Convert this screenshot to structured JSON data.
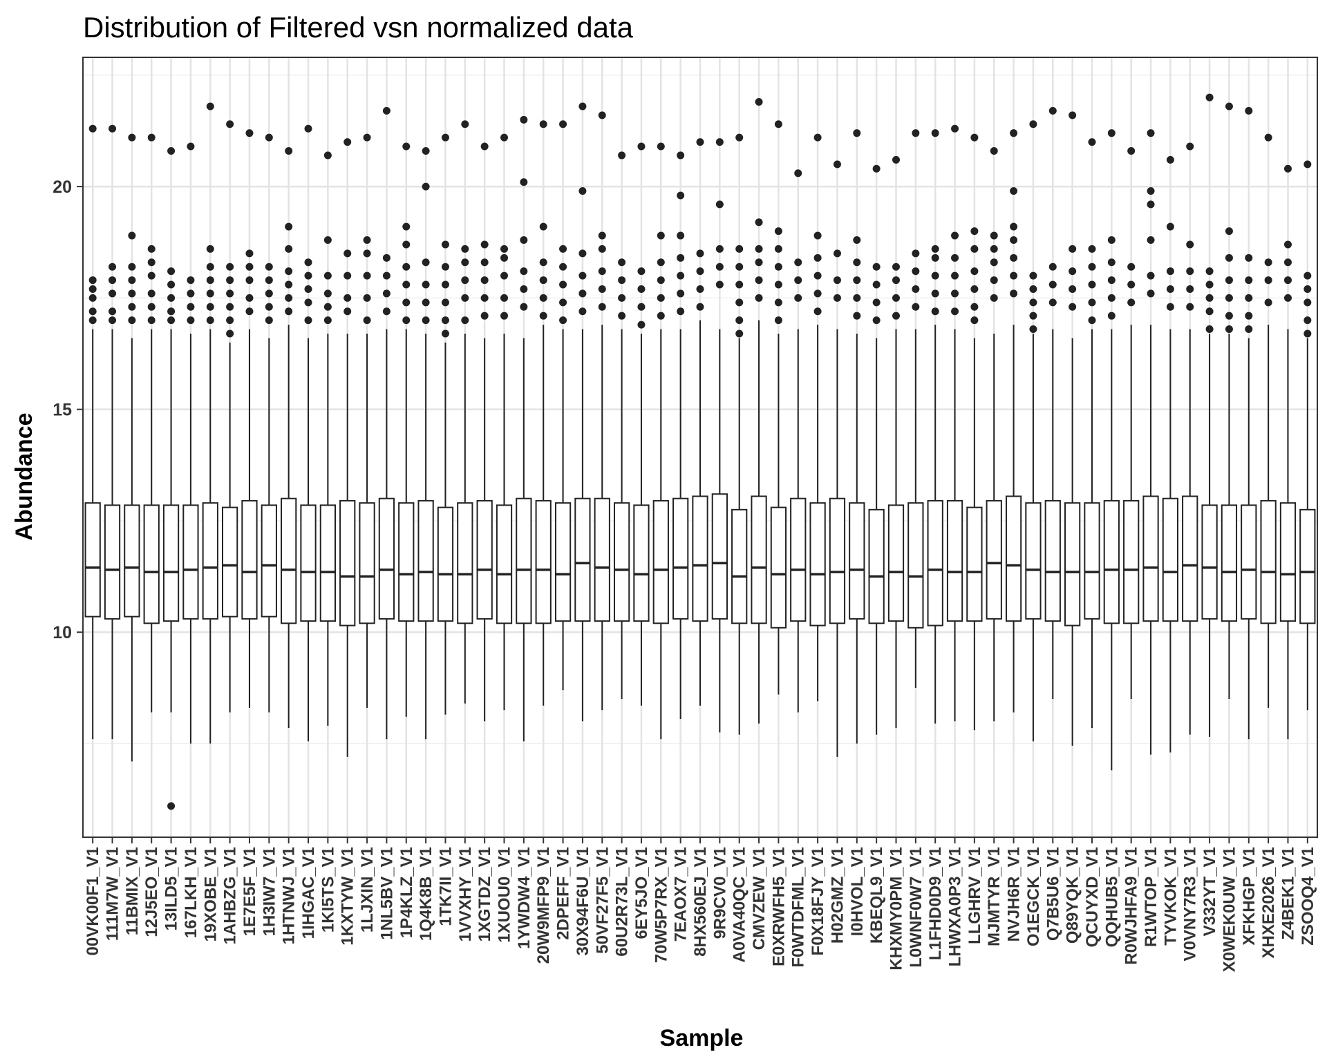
{
  "chart_data": {
    "type": "boxplot",
    "title": "Distribution of Filtered vsn normalized data",
    "xlabel": "Sample",
    "ylabel": "Abundance",
    "ylim": [
      5.4,
      22.9
    ],
    "yticks": [
      10,
      15,
      20
    ],
    "grid": true,
    "categories": [
      "00VK00F1_V1",
      "111M7W_V1",
      "11BMIX_V1",
      "12J5EO_V1",
      "13ILD5_V1",
      "167LKH_V1",
      "19XOBE_V1",
      "1AHBZG_V1",
      "1E7E5F_V1",
      "1H3IW7_V1",
      "1HTNWJ_V1",
      "1IHGAC_V1",
      "1KI5TS_V1",
      "1KXTYW_V1",
      "1LJXIN_V1",
      "1NL5BV_V1",
      "1P4KLZ_V1",
      "1Q4K8B_V1",
      "1TK7II_V1",
      "1VVXHY_V1",
      "1XGTDZ_V1",
      "1XUOU0_V1",
      "1YWDW4_V1",
      "20W9MFP9_V1",
      "2DPEFF_V1",
      "30X94F6U_V1",
      "50VF27F5_V1",
      "60U2R73L_V1",
      "6EY5JO_V1",
      "70W5P7RX_V1",
      "7EAOX7_V1",
      "8HX560EJ_V1",
      "9R9CV0_V1",
      "A0VA40QC_V1",
      "CMVZEW_V1",
      "E0XRWFH5_V1",
      "F0WTDFML_V1",
      "F0X18FJY_V1",
      "H02GMZ_V1",
      "I0HVOL_V1",
      "KBEQL9_V1",
      "KHXMY0PM_V1",
      "L0WNF0W7_V1",
      "L1FHD0D9_V1",
      "LHWXA0P3_V1",
      "LLGHRV_V1",
      "MJMTYR_V1",
      "NVJH6R_V1",
      "O1EGCK_V1",
      "Q7B5U6_V1",
      "Q89YQK_V1",
      "QCUYXD_V1",
      "QQHUB5_V1",
      "R0WJHFA9_V1",
      "R1WTOP_V1",
      "TYVKOK_V1",
      "V0VNY7R3_V1",
      "V332YT_V1",
      "X0WEK0UW_V1",
      "XFKHGP_V1",
      "XHXE2026_V1",
      "Z4BEK1_V1",
      "ZSOOQ4_V1"
    ],
    "boxes": {
      "q1": [
        10.35,
        10.3,
        10.35,
        10.2,
        10.25,
        10.3,
        10.3,
        10.35,
        10.3,
        10.35,
        10.2,
        10.25,
        10.25,
        10.15,
        10.2,
        10.3,
        10.25,
        10.25,
        10.25,
        10.2,
        10.3,
        10.2,
        10.2,
        10.2,
        10.25,
        10.25,
        10.25,
        10.25,
        10.25,
        10.2,
        10.3,
        10.25,
        10.3,
        10.2,
        10.2,
        10.1,
        10.25,
        10.15,
        10.2,
        10.3,
        10.2,
        10.25,
        10.1,
        10.15,
        10.25,
        10.25,
        10.3,
        10.25,
        10.3,
        10.25,
        10.15,
        10.3,
        10.2,
        10.2,
        10.25,
        10.25,
        10.25,
        10.3,
        10.25,
        10.3,
        10.2,
        10.25,
        10.2
      ],
      "median": [
        11.45,
        11.4,
        11.45,
        11.35,
        11.35,
        11.4,
        11.45,
        11.5,
        11.35,
        11.5,
        11.4,
        11.35,
        11.35,
        11.25,
        11.25,
        11.4,
        11.3,
        11.35,
        11.3,
        11.3,
        11.4,
        11.3,
        11.4,
        11.4,
        11.3,
        11.55,
        11.45,
        11.4,
        11.3,
        11.4,
        11.45,
        11.5,
        11.55,
        11.25,
        11.45,
        11.3,
        11.4,
        11.3,
        11.35,
        11.4,
        11.25,
        11.35,
        11.25,
        11.4,
        11.35,
        11.35,
        11.55,
        11.5,
        11.4,
        11.35,
        11.35,
        11.35,
        11.4,
        11.4,
        11.45,
        11.35,
        11.5,
        11.45,
        11.35,
        11.4,
        11.35,
        11.3,
        11.35
      ],
      "q3": [
        12.9,
        12.85,
        12.85,
        12.85,
        12.85,
        12.85,
        12.9,
        12.8,
        12.95,
        12.85,
        13.0,
        12.85,
        12.85,
        12.95,
        12.9,
        13.0,
        12.9,
        12.95,
        12.8,
        12.9,
        12.95,
        12.85,
        13.0,
        12.95,
        12.9,
        13.0,
        13.0,
        12.9,
        12.85,
        12.95,
        13.0,
        13.05,
        13.1,
        12.75,
        13.05,
        12.8,
        13.0,
        12.9,
        13.0,
        12.9,
        12.75,
        12.85,
        12.9,
        12.95,
        12.95,
        12.8,
        12.95,
        13.05,
        12.9,
        12.95,
        12.9,
        12.9,
        12.95,
        12.95,
        13.05,
        13.0,
        13.05,
        12.85,
        12.85,
        12.85,
        12.95,
        12.9,
        12.75
      ],
      "whisker_low": [
        7.6,
        7.6,
        7.1,
        8.2,
        8.2,
        7.5,
        7.5,
        8.2,
        8.3,
        8.2,
        7.85,
        7.55,
        7.9,
        7.2,
        8.3,
        7.6,
        8.1,
        7.6,
        8.15,
        8.4,
        8.0,
        8.25,
        7.55,
        8.35,
        8.7,
        8.0,
        8.25,
        8.5,
        8.35,
        7.6,
        8.05,
        8.35,
        7.75,
        7.7,
        7.95,
        8.6,
        8.2,
        8.45,
        7.2,
        7.5,
        7.7,
        7.85,
        8.75,
        7.95,
        8.0,
        7.8,
        8.0,
        8.2,
        7.55,
        8.5,
        7.45,
        7.85,
        6.9,
        8.5,
        7.25,
        7.3,
        7.7,
        7.65,
        8.5,
        7.6,
        8.3,
        7.6,
        8.25
      ],
      "whisker_high": [
        16.8,
        16.8,
        16.6,
        16.8,
        16.8,
        16.7,
        16.8,
        16.5,
        16.8,
        16.6,
        16.9,
        16.6,
        16.7,
        16.7,
        16.7,
        16.8,
        16.8,
        16.7,
        16.5,
        16.7,
        16.6,
        16.7,
        16.6,
        16.9,
        16.8,
        16.8,
        16.9,
        16.8,
        16.7,
        16.8,
        16.8,
        17.0,
        16.8,
        16.6,
        17.0,
        16.7,
        16.8,
        16.9,
        16.8,
        16.7,
        16.6,
        16.8,
        16.8,
        16.9,
        16.8,
        16.6,
        16.7,
        16.9,
        16.7,
        16.8,
        16.6,
        16.8,
        16.8,
        16.9,
        16.9,
        16.8,
        16.8,
        16.7,
        16.7,
        16.6,
        16.9,
        16.8,
        16.6
      ],
      "outliers": [
        [
          17.0,
          17.2,
          17.5,
          17.7,
          17.9,
          21.3
        ],
        [
          17.0,
          17.2,
          17.6,
          17.9,
          18.2,
          21.3
        ],
        [
          17.0,
          17.3,
          17.6,
          17.9,
          18.2,
          18.9,
          21.1
        ],
        [
          17.0,
          17.3,
          17.6,
          18.0,
          18.3,
          18.6,
          21.1
        ],
        [
          17.0,
          17.2,
          17.5,
          17.8,
          18.1,
          20.8
        ],
        [
          17.0,
          17.3,
          17.6,
          17.9,
          20.9
        ],
        [
          17.0,
          17.3,
          17.6,
          17.9,
          18.2,
          18.6,
          21.8
        ],
        [
          16.7,
          17.0,
          17.3,
          17.6,
          17.9,
          18.2,
          21.4
        ],
        [
          17.2,
          17.5,
          17.9,
          18.2,
          18.5,
          21.2
        ],
        [
          17.0,
          17.3,
          17.6,
          17.9,
          18.2,
          21.1
        ],
        [
          17.2,
          17.5,
          17.8,
          18.1,
          18.6,
          19.1,
          20.8
        ],
        [
          17.0,
          17.4,
          17.7,
          18.0,
          18.3,
          21.3
        ],
        [
          17.0,
          17.3,
          17.6,
          18.0,
          18.8,
          20.7
        ],
        [
          17.2,
          17.5,
          18.0,
          18.5,
          21.0
        ],
        [
          17.0,
          17.5,
          18.0,
          18.5,
          18.8,
          21.1
        ],
        [
          17.2,
          17.6,
          18.0,
          18.4,
          21.7
        ],
        [
          17.0,
          17.4,
          17.8,
          18.2,
          18.7,
          19.1,
          20.9
        ],
        [
          17.0,
          17.4,
          17.8,
          18.3,
          20.0,
          20.8
        ],
        [
          16.7,
          17.0,
          17.4,
          17.8,
          18.2,
          18.7,
          21.1
        ],
        [
          17.0,
          17.5,
          17.9,
          18.3,
          18.6,
          21.4
        ],
        [
          17.1,
          17.5,
          17.9,
          18.3,
          18.7,
          20.9
        ],
        [
          17.1,
          17.5,
          18.0,
          18.4,
          18.6,
          21.1
        ],
        [
          17.3,
          17.7,
          18.1,
          18.8,
          20.1,
          21.5
        ],
        [
          17.1,
          17.5,
          17.9,
          18.3,
          19.1,
          21.4
        ],
        [
          17.0,
          17.4,
          17.8,
          18.2,
          18.6,
          21.4
        ],
        [
          17.2,
          17.6,
          18.0,
          18.5,
          19.9,
          21.8
        ],
        [
          17.3,
          17.7,
          18.1,
          18.6,
          18.9,
          21.6
        ],
        [
          17.1,
          17.5,
          17.9,
          18.3,
          20.7
        ],
        [
          16.9,
          17.3,
          17.7,
          18.1,
          20.9
        ],
        [
          17.1,
          17.5,
          17.9,
          18.3,
          18.9,
          20.9
        ],
        [
          17.2,
          17.6,
          18.0,
          18.4,
          18.9,
          19.8,
          20.7
        ],
        [
          17.3,
          17.7,
          18.1,
          18.5,
          21.0
        ],
        [
          17.8,
          18.2,
          18.6,
          19.6,
          21.0
        ],
        [
          16.7,
          17.0,
          17.4,
          17.8,
          18.2,
          18.6,
          21.1
        ],
        [
          17.5,
          17.9,
          18.3,
          18.6,
          19.2,
          21.9
        ],
        [
          17.0,
          17.4,
          17.8,
          18.2,
          18.6,
          19.0,
          21.4
        ],
        [
          17.5,
          17.9,
          18.3,
          20.3
        ],
        [
          17.2,
          17.6,
          18.0,
          18.4,
          18.9,
          21.1
        ],
        [
          17.5,
          17.9,
          18.5,
          20.5
        ],
        [
          17.1,
          17.5,
          17.9,
          18.3,
          18.8,
          21.2
        ],
        [
          17.0,
          17.4,
          17.8,
          18.2,
          20.4
        ],
        [
          17.1,
          17.5,
          17.9,
          18.2,
          20.6
        ],
        [
          17.3,
          17.7,
          18.1,
          18.5,
          21.2
        ],
        [
          17.2,
          17.6,
          18.0,
          18.4,
          18.6,
          21.2
        ],
        [
          17.2,
          17.6,
          18.0,
          18.4,
          18.9,
          21.3
        ],
        [
          17.0,
          17.3,
          17.7,
          18.1,
          18.6,
          19.0,
          21.1
        ],
        [
          17.5,
          17.9,
          18.3,
          18.6,
          18.9,
          20.8
        ],
        [
          17.6,
          18.0,
          18.4,
          18.8,
          19.1,
          19.9,
          21.2
        ],
        [
          16.8,
          17.1,
          17.4,
          17.7,
          18.0,
          21.4
        ],
        [
          17.4,
          17.8,
          18.2,
          21.7
        ],
        [
          17.3,
          17.7,
          18.1,
          18.6,
          21.6
        ],
        [
          17.0,
          17.4,
          17.8,
          18.2,
          18.6,
          21.0
        ],
        [
          17.1,
          17.5,
          17.9,
          18.3,
          18.8,
          21.2
        ],
        [
          17.4,
          17.8,
          18.2,
          20.8
        ],
        [
          17.6,
          18.0,
          18.8,
          19.6,
          19.9,
          21.2
        ],
        [
          17.3,
          17.7,
          18.1,
          19.1,
          20.6
        ],
        [
          17.3,
          17.7,
          18.1,
          18.7,
          20.9
        ],
        [
          16.8,
          17.2,
          17.5,
          17.8,
          18.1,
          22.0
        ],
        [
          16.8,
          17.1,
          17.5,
          17.9,
          18.4,
          19.0,
          21.8
        ],
        [
          16.8,
          17.1,
          17.5,
          17.9,
          18.4,
          21.7
        ],
        [
          17.4,
          17.9,
          18.3,
          21.1
        ],
        [
          17.5,
          17.9,
          18.3,
          18.7,
          20.4
        ],
        [
          16.7,
          17.0,
          17.4,
          17.7,
          18.0,
          20.5
        ]
      ]
    }
  }
}
